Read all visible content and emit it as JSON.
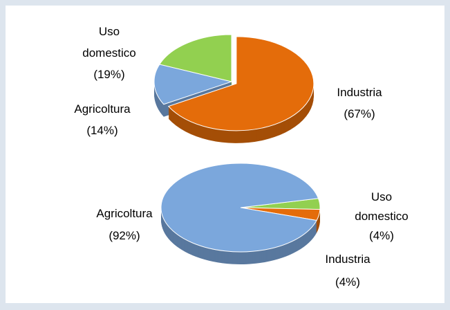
{
  "chart_data": [
    {
      "type": "pie",
      "categories": [
        "Industria",
        "Agricoltura",
        "Uso domestico"
      ],
      "values": [
        67,
        14,
        19
      ],
      "value_labels": [
        "(67%)",
        "(14%)",
        "(19%)"
      ],
      "colors": [
        "#e46c0a",
        "#7ba7dc",
        "#92d050"
      ]
    },
    {
      "type": "pie",
      "categories": [
        "Uso domestico",
        "Industria",
        "Agricoltura"
      ],
      "values": [
        4,
        4,
        92
      ],
      "value_labels": [
        "(4%)",
        "(4%)",
        "(92%)"
      ],
      "colors": [
        "#92d050",
        "#e46c0a",
        "#7ba7dc"
      ]
    }
  ]
}
